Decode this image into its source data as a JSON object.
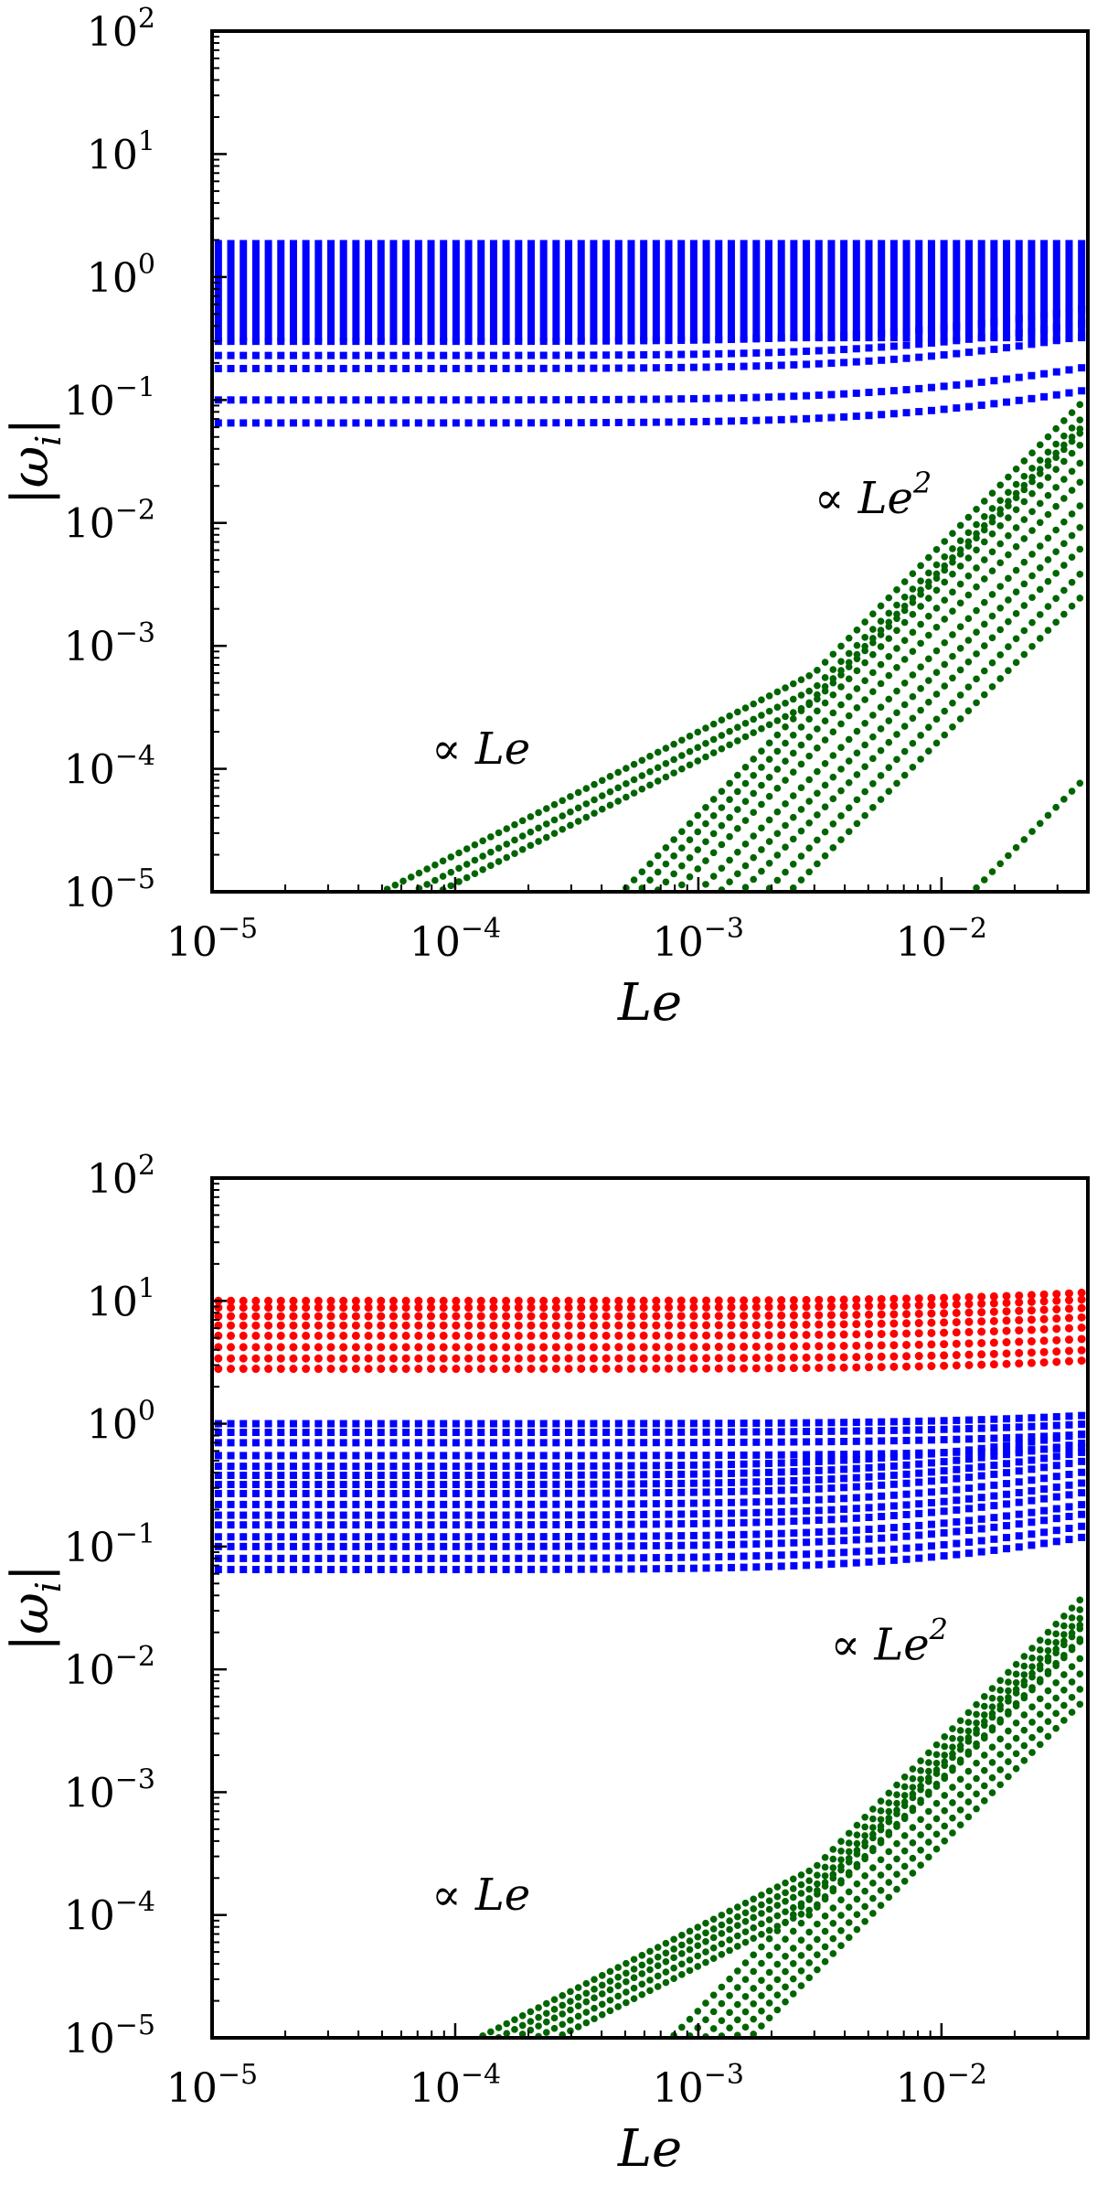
{
  "chart_data": [
    {
      "type": "scatter",
      "title": "",
      "xlabel": "Le",
      "ylabel": "|ωi|",
      "xscale": "log",
      "yscale": "log",
      "xlim": [
        1e-05,
        0.04
      ],
      "ylim": [
        1e-05,
        100
      ],
      "x_ticks": [
        {
          "base": "10",
          "exp": "−5",
          "value": 1e-05
        },
        {
          "base": "10",
          "exp": "−4",
          "value": 0.0001
        },
        {
          "base": "10",
          "exp": "−3",
          "value": 0.001
        },
        {
          "base": "10",
          "exp": "−2",
          "value": 0.01
        }
      ],
      "y_ticks": [
        {
          "base": "10",
          "exp": "−5",
          "value": 1e-05
        },
        {
          "base": "10",
          "exp": "−4",
          "value": 0.0001
        },
        {
          "base": "10",
          "exp": "−3",
          "value": 0.001
        },
        {
          "base": "10",
          "exp": "−2",
          "value": 0.01
        },
        {
          "base": "10",
          "exp": "−1",
          "value": 0.1
        },
        {
          "base": "10",
          "exp": "0",
          "value": 1
        },
        {
          "base": "10",
          "exp": "1",
          "value": 10
        },
        {
          "base": "10",
          "exp": "2",
          "value": 100
        }
      ],
      "grid": false,
      "legend": "none",
      "annotations": [
        {
          "prefix": "∝ ",
          "text": "Le",
          "sup": "2",
          "x": 0.003,
          "y": 0.012
        },
        {
          "prefix": "∝ ",
          "text": "Le",
          "sup": "",
          "x": 8e-05,
          "y": 0.00011
        }
      ],
      "x_points": 70,
      "series": [
        {
          "color": "#0000ff",
          "dense_band": [
            0.3,
            2.0
          ],
          "dense_band_min_x": 0.0,
          "levels": [
            0.065,
            0.1,
            0.18,
            0.23,
            0.3
          ],
          "trend": "flat"
        },
        {
          "color": "#006400",
          "lines": [
            {
              "y0": 0.0006,
              "x0": 0.003,
              "slope_low": 1,
              "slope_high": 2
            },
            {
              "y0": 0.00045,
              "x0": 0.003,
              "slope_low": 1,
              "slope_high": 2
            },
            {
              "y0": 0.00035,
              "x0": 0.003,
              "slope_low": 1,
              "slope_high": 2
            },
            {
              "y0": 0.00038,
              "x0": 0.003,
              "slope_low": 2,
              "slope_high": 2
            },
            {
              "y0": 0.00028,
              "x0": 0.003,
              "slope_low": 2,
              "slope_high": 2
            },
            {
              "y0": 0.0002,
              "x0": 0.003,
              "slope_low": 2,
              "slope_high": 2
            },
            {
              "y0": 0.00014,
              "x0": 0.003,
              "slope_low": 2,
              "slope_high": 2
            },
            {
              "y0": 9e-05,
              "x0": 0.003,
              "slope_low": 2,
              "slope_high": 2
            },
            {
              "y0": 6e-05,
              "x0": 0.003,
              "slope_low": 2,
              "slope_high": 2
            },
            {
              "y0": 4e-05,
              "x0": 0.003,
              "slope_low": 2,
              "slope_high": 2
            },
            {
              "y0": 2.5e-05,
              "x0": 0.003,
              "slope_low": 2,
              "slope_high": 2
            },
            {
              "y0": 1.6e-05,
              "x0": 0.003,
              "slope_low": 2,
              "slope_high": 2
            },
            {
              "y0": 5e-07,
              "x0": 0.003,
              "slope_low": 2,
              "slope_high": 2
            }
          ]
        }
      ]
    },
    {
      "type": "scatter",
      "title": "",
      "xlabel": "Le",
      "ylabel": "|ωi|",
      "xscale": "log",
      "yscale": "log",
      "xlim": [
        1e-05,
        0.04
      ],
      "ylim": [
        1e-05,
        100
      ],
      "x_ticks": [
        {
          "base": "10",
          "exp": "−5",
          "value": 1e-05
        },
        {
          "base": "10",
          "exp": "−4",
          "value": 0.0001
        },
        {
          "base": "10",
          "exp": "−3",
          "value": 0.001
        },
        {
          "base": "10",
          "exp": "−2",
          "value": 0.01
        }
      ],
      "y_ticks": [
        {
          "base": "10",
          "exp": "−5",
          "value": 1e-05
        },
        {
          "base": "10",
          "exp": "−4",
          "value": 0.0001
        },
        {
          "base": "10",
          "exp": "−3",
          "value": 0.001
        },
        {
          "base": "10",
          "exp": "−2",
          "value": 0.01
        },
        {
          "base": "10",
          "exp": "−1",
          "value": 0.1
        },
        {
          "base": "10",
          "exp": "0",
          "value": 1
        },
        {
          "base": "10",
          "exp": "1",
          "value": 10
        },
        {
          "base": "10",
          "exp": "2",
          "value": 100
        }
      ],
      "grid": false,
      "legend": "none",
      "annotations": [
        {
          "prefix": "∝ ",
          "text": "Le",
          "sup": "2",
          "x": 0.0035,
          "y": 0.012
        },
        {
          "prefix": "∝ ",
          "text": "Le",
          "sup": "",
          "x": 8e-05,
          "y": 0.00011
        }
      ],
      "x_points": 70,
      "series": [
        {
          "color": "#ff0000",
          "levels": [
            2.8,
            3.4,
            4.2,
            5.2,
            6.3,
            7.5,
            8.8,
            10.0
          ],
          "trend": "flat"
        },
        {
          "color": "#0000ff",
          "levels": [
            0.065,
            0.08,
            0.1,
            0.12,
            0.15,
            0.18,
            0.22,
            0.27,
            0.32,
            0.38,
            0.45,
            0.55,
            0.7,
            0.85,
            1.0
          ],
          "trend": "flat"
        },
        {
          "color": "#006400",
          "lines": [
            {
              "y0": 0.00024,
              "x0": 0.003,
              "slope_low": 1,
              "slope_high": 2
            },
            {
              "y0": 0.0002,
              "x0": 0.003,
              "slope_low": 1,
              "slope_high": 2
            },
            {
              "y0": 0.00017,
              "x0": 0.003,
              "slope_low": 1,
              "slope_high": 2
            },
            {
              "y0": 0.00014,
              "x0": 0.003,
              "slope_low": 1,
              "slope_high": 2
            },
            {
              "y0": 0.000115,
              "x0": 0.003,
              "slope_low": 1,
              "slope_high": 2
            },
            {
              "y0": 0.00015,
              "x0": 0.003,
              "slope_low": 2,
              "slope_high": 2
            },
            {
              "y0": 0.00011,
              "x0": 0.003,
              "slope_low": 2,
              "slope_high": 2
            },
            {
              "y0": 8e-05,
              "x0": 0.003,
              "slope_low": 2,
              "slope_high": 2
            },
            {
              "y0": 6e-05,
              "x0": 0.003,
              "slope_low": 2,
              "slope_high": 2
            },
            {
              "y0": 4.5e-05,
              "x0": 0.003,
              "slope_low": 2,
              "slope_high": 2
            },
            {
              "y0": 3.4e-05,
              "x0": 0.003,
              "slope_low": 2,
              "slope_high": 2
            }
          ]
        }
      ]
    }
  ]
}
